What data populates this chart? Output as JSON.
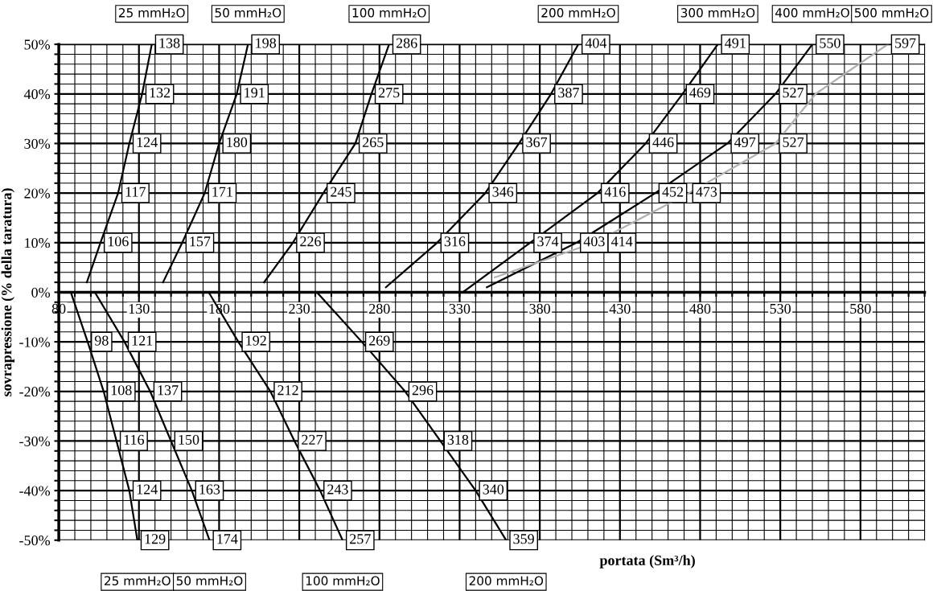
{
  "chart_data": {
    "type": "line",
    "xlabel": "portata (Sm³/h)",
    "ylabel": "sovrapressione (% della taratura)",
    "xlim": [
      80,
      620
    ],
    "ylim": [
      -50,
      50
    ],
    "grid": true,
    "marker": "none",
    "line_style": "solid",
    "xticks": [
      {
        "value": 80,
        "label": "80"
      },
      {
        "value": 90,
        "label": null
      },
      {
        "value": 100,
        "label": null
      },
      {
        "value": 110,
        "label": null
      },
      {
        "value": 120,
        "label": null
      },
      {
        "value": 130,
        "label": "130"
      },
      {
        "value": 140,
        "label": null
      },
      {
        "value": 150,
        "label": null
      },
      {
        "value": 160,
        "label": null
      },
      {
        "value": 170,
        "label": null
      },
      {
        "value": 180,
        "label": "180"
      },
      {
        "value": 190,
        "label": null
      },
      {
        "value": 200,
        "label": null
      },
      {
        "value": 210,
        "label": null
      },
      {
        "value": 220,
        "label": null
      },
      {
        "value": 230,
        "label": "230"
      },
      {
        "value": 240,
        "label": null
      },
      {
        "value": 250,
        "label": null
      },
      {
        "value": 260,
        "label": null
      },
      {
        "value": 270,
        "label": null
      },
      {
        "value": 280,
        "label": "280"
      },
      {
        "value": 290,
        "label": null
      },
      {
        "value": 300,
        "label": null
      },
      {
        "value": 310,
        "label": null
      },
      {
        "value": 320,
        "label": null
      },
      {
        "value": 330,
        "label": "330"
      },
      {
        "value": 340,
        "label": null
      },
      {
        "value": 350,
        "label": null
      },
      {
        "value": 360,
        "label": null
      },
      {
        "value": 370,
        "label": null
      },
      {
        "value": 380,
        "label": "380"
      },
      {
        "value": 390,
        "label": null
      },
      {
        "value": 400,
        "label": null
      },
      {
        "value": 410,
        "label": null
      },
      {
        "value": 420,
        "label": null
      },
      {
        "value": 430,
        "label": "430"
      },
      {
        "value": 440,
        "label": null
      },
      {
        "value": 450,
        "label": null
      },
      {
        "value": 460,
        "label": null
      },
      {
        "value": 470,
        "label": null
      },
      {
        "value": 480,
        "label": "480"
      },
      {
        "value": 490,
        "label": null
      },
      {
        "value": 500,
        "label": null
      },
      {
        "value": 510,
        "label": null
      },
      {
        "value": 520,
        "label": null
      },
      {
        "value": 530,
        "label": "530"
      },
      {
        "value": 540,
        "label": null
      },
      {
        "value": 550,
        "label": null
      },
      {
        "value": 560,
        "label": null
      },
      {
        "value": 570,
        "label": null
      },
      {
        "value": 580,
        "label": "580"
      },
      {
        "value": 590,
        "label": null
      },
      {
        "value": 600,
        "label": null
      },
      {
        "value": 610,
        "label": null
      },
      {
        "value": 620,
        "label": null
      }
    ],
    "yticks": [
      {
        "value": -50,
        "label": "-50%"
      },
      {
        "value": -48,
        "label": null
      },
      {
        "value": -46,
        "label": null
      },
      {
        "value": -44,
        "label": null
      },
      {
        "value": -42,
        "label": null
      },
      {
        "value": -40,
        "label": "-40%"
      },
      {
        "value": -38,
        "label": null
      },
      {
        "value": -36,
        "label": null
      },
      {
        "value": -34,
        "label": null
      },
      {
        "value": -32,
        "label": null
      },
      {
        "value": -30,
        "label": "-30%"
      },
      {
        "value": -28,
        "label": null
      },
      {
        "value": -26,
        "label": null
      },
      {
        "value": -24,
        "label": null
      },
      {
        "value": -22,
        "label": null
      },
      {
        "value": -20,
        "label": "-20%"
      },
      {
        "value": -18,
        "label": null
      },
      {
        "value": -16,
        "label": null
      },
      {
        "value": -14,
        "label": null
      },
      {
        "value": -12,
        "label": null
      },
      {
        "value": -10,
        "label": "-10%"
      },
      {
        "value": -8,
        "label": null
      },
      {
        "value": -6,
        "label": null
      },
      {
        "value": -4,
        "label": null
      },
      {
        "value": -2,
        "label": null
      },
      {
        "value": 0,
        "label": "0%"
      },
      {
        "value": 2,
        "label": null
      },
      {
        "value": 4,
        "label": null
      },
      {
        "value": 6,
        "label": null
      },
      {
        "value": 8,
        "label": null
      },
      {
        "value": 10,
        "label": "10%"
      },
      {
        "value": 12,
        "label": null
      },
      {
        "value": 14,
        "label": null
      },
      {
        "value": 16,
        "label": null
      },
      {
        "value": 18,
        "label": null
      },
      {
        "value": 20,
        "label": "20%"
      },
      {
        "value": 22,
        "label": null
      },
      {
        "value": 24,
        "label": null
      },
      {
        "value": 26,
        "label": null
      },
      {
        "value": 28,
        "label": null
      },
      {
        "value": 30,
        "label": "30%"
      },
      {
        "value": 32,
        "label": null
      },
      {
        "value": 34,
        "label": null
      },
      {
        "value": 36,
        "label": null
      },
      {
        "value": 38,
        "label": null
      },
      {
        "value": 40,
        "label": "40%"
      },
      {
        "value": 42,
        "label": null
      },
      {
        "value": 44,
        "label": null
      },
      {
        "value": 46,
        "label": null
      },
      {
        "value": 48,
        "label": null
      },
      {
        "value": 50,
        "label": "50%"
      }
    ],
    "series": [
      {
        "name": "25 mmH₂O",
        "color": "#000000",
        "x": [
          97.5,
          106,
          117,
          124,
          132,
          138
        ],
        "values": [
          2,
          10,
          20,
          30,
          40,
          50
        ]
      },
      {
        "name": "50 mmH₂O",
        "color": "#000000",
        "x": [
          145,
          157,
          171,
          180,
          191,
          198
        ],
        "values": [
          2,
          10,
          20,
          30,
          40,
          50
        ]
      },
      {
        "name": "100 mmH₂O",
        "color": "#000000",
        "x": [
          208,
          226,
          245,
          265,
          275,
          286
        ],
        "values": [
          2,
          10,
          20,
          30,
          40,
          50
        ]
      },
      {
        "name": "200 mmH₂O",
        "color": "#000000",
        "x": [
          284,
          316,
          346,
          367,
          387,
          404
        ],
        "values": [
          1,
          10,
          20,
          30,
          40,
          50
        ]
      },
      {
        "name": "300 mmH₂O",
        "color": "#000000",
        "x": [
          332,
          374,
          416,
          446,
          469,
          491
        ],
        "values": [
          0,
          10,
          20,
          30,
          40,
          50
        ]
      },
      {
        "name": "400 mmH₂O",
        "color": "#000000",
        "x": [
          347,
          403,
          452,
          497,
          527,
          550
        ],
        "values": [
          1,
          10,
          20,
          30,
          40,
          50
        ]
      },
      {
        "name": "500 mmH₂O",
        "color": "#b0b0b0",
        "x": [
          352,
          414,
          473,
          527,
          552,
          597
        ],
        "values": [
          3,
          10,
          20,
          30,
          40,
          50
        ]
      },
      {
        "name": "25 mmH₂O",
        "color": "#000000",
        "x": [
          87.5,
          98,
          108,
          116,
          124,
          129
        ],
        "values": [
          0,
          -10,
          -20,
          -30,
          -40,
          -50
        ]
      },
      {
        "name": "50 mmH₂O",
        "color": "#000000",
        "x": [
          102.5,
          121,
          137,
          150,
          163,
          174
        ],
        "values": [
          0,
          -10,
          -20,
          -30,
          -40,
          -50
        ]
      },
      {
        "name": "100 mmH₂O",
        "color": "#000000",
        "x": [
          173.5,
          192,
          212,
          227,
          243,
          257
        ],
        "values": [
          0,
          -10,
          -20,
          -30,
          -40,
          -50
        ]
      },
      {
        "name": "200 mmH₂O",
        "color": "#000000",
        "x": [
          241,
          269,
          296,
          318,
          340,
          359
        ],
        "values": [
          0,
          -10,
          -20,
          -30,
          -40,
          -50
        ]
      }
    ],
    "annotations": [
      {
        "text": "106",
        "x": 106,
        "y": 10
      },
      {
        "text": "117",
        "x": 117,
        "y": 20
      },
      {
        "text": "124",
        "x": 124,
        "y": 30
      },
      {
        "text": "132",
        "x": 132,
        "y": 40
      },
      {
        "text": "138",
        "x": 138,
        "y": 50
      },
      {
        "text": "157",
        "x": 157,
        "y": 10
      },
      {
        "text": "171",
        "x": 171,
        "y": 20
      },
      {
        "text": "180",
        "x": 180,
        "y": 30
      },
      {
        "text": "191",
        "x": 191,
        "y": 40
      },
      {
        "text": "198",
        "x": 198,
        "y": 50
      },
      {
        "text": "226",
        "x": 226,
        "y": 10
      },
      {
        "text": "245",
        "x": 245,
        "y": 20
      },
      {
        "text": "265",
        "x": 265,
        "y": 30
      },
      {
        "text": "275",
        "x": 275,
        "y": 40
      },
      {
        "text": "286",
        "x": 286,
        "y": 50
      },
      {
        "text": "316",
        "x": 316,
        "y": 10
      },
      {
        "text": "346",
        "x": 346,
        "y": 20
      },
      {
        "text": "367",
        "x": 367,
        "y": 30
      },
      {
        "text": "387",
        "x": 387,
        "y": 40
      },
      {
        "text": "404",
        "x": 404,
        "y": 50
      },
      {
        "text": "374",
        "x": 374,
        "y": 10
      },
      {
        "text": "416",
        "x": 416,
        "y": 20
      },
      {
        "text": "446",
        "x": 446,
        "y": 30
      },
      {
        "text": "469",
        "x": 469,
        "y": 40
      },
      {
        "text": "491",
        "x": 491,
        "y": 50
      },
      {
        "text": "403",
        "x": 403,
        "y": 10
      },
      {
        "text": "452",
        "x": 452,
        "y": 20
      },
      {
        "text": "497",
        "x": 497,
        "y": 30
      },
      {
        "text": "527",
        "x": 527,
        "y": 40
      },
      {
        "text": "550",
        "x": 550,
        "y": 50
      },
      {
        "text": "414",
        "x": 414,
        "y": 10
      },
      {
        "text": "473",
        "x": 473,
        "y": 20
      },
      {
        "text": "527",
        "x": 527,
        "y": 30
      },
      {
        "text": "597",
        "x": 597,
        "y": 50
      },
      {
        "text": "98",
        "x": 98,
        "y": -10
      },
      {
        "text": "108",
        "x": 108,
        "y": -20
      },
      {
        "text": "116",
        "x": 116,
        "y": -30
      },
      {
        "text": "124",
        "x": 124,
        "y": -40
      },
      {
        "text": "129",
        "x": 129,
        "y": -50
      },
      {
        "text": "121",
        "x": 121,
        "y": -10
      },
      {
        "text": "137",
        "x": 137,
        "y": -20
      },
      {
        "text": "150",
        "x": 150,
        "y": -30
      },
      {
        "text": "163",
        "x": 163,
        "y": -40
      },
      {
        "text": "174",
        "x": 174,
        "y": -50
      },
      {
        "text": "192",
        "x": 192,
        "y": -10
      },
      {
        "text": "212",
        "x": 212,
        "y": -20
      },
      {
        "text": "227",
        "x": 227,
        "y": -30
      },
      {
        "text": "243",
        "x": 243,
        "y": -40
      },
      {
        "text": "257",
        "x": 257,
        "y": -50
      },
      {
        "text": "269",
        "x": 269,
        "y": -10
      },
      {
        "text": "296",
        "x": 296,
        "y": -20
      },
      {
        "text": "318",
        "x": 318,
        "y": -30
      },
      {
        "text": "340",
        "x": 340,
        "y": -40
      },
      {
        "text": "359",
        "x": 359,
        "y": -50
      }
    ]
  }
}
